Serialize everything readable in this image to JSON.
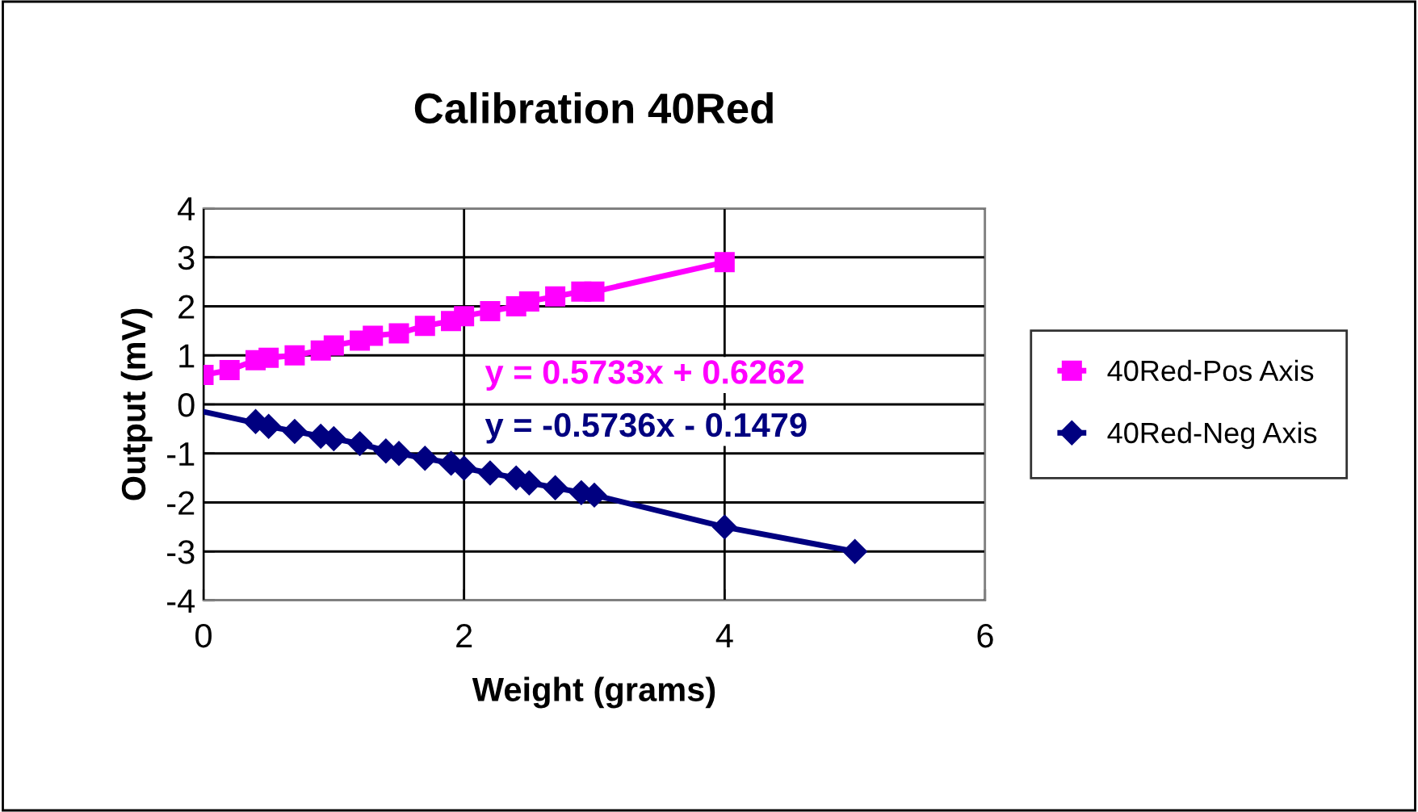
{
  "chart_data": {
    "type": "line",
    "title": "Calibration 40Red",
    "xlabel": "Weight (grams)",
    "ylabel": "Output (mV)",
    "xlim": [
      0,
      6
    ],
    "xticks": [
      0,
      2,
      4,
      6
    ],
    "ylim": [
      -4,
      4
    ],
    "yticks": [
      -4,
      -3,
      -2,
      -1,
      0,
      1,
      2,
      3,
      4
    ],
    "grid": true,
    "legend": "right",
    "series": [
      {
        "name": "40Red-Pos Axis",
        "color": "#ff00ff",
        "marker": "square",
        "x": [
          0,
          0.2,
          0.4,
          0.5,
          0.7,
          0.9,
          1.0,
          1.2,
          1.3,
          1.5,
          1.7,
          1.9,
          2.0,
          2.2,
          2.4,
          2.5,
          2.7,
          2.9,
          3.0,
          4.0
        ],
        "values": [
          0.6,
          0.7,
          0.9,
          0.95,
          1.0,
          1.1,
          1.2,
          1.3,
          1.4,
          1.45,
          1.6,
          1.7,
          1.8,
          1.9,
          2.0,
          2.1,
          2.2,
          2.3,
          2.3,
          2.9
        ]
      },
      {
        "name": "40Red-Neg Axis",
        "color": "#000080",
        "marker": "diamond",
        "x": [
          0.4,
          0.5,
          0.7,
          0.9,
          1.0,
          1.2,
          1.4,
          1.5,
          1.7,
          1.9,
          2.0,
          2.2,
          2.4,
          2.5,
          2.7,
          2.9,
          3.0,
          4.0,
          5.0
        ],
        "values": [
          -0.35,
          -0.45,
          -0.55,
          -0.65,
          -0.7,
          -0.8,
          -0.95,
          -1.0,
          -1.1,
          -1.2,
          -1.3,
          -1.4,
          -1.5,
          -1.6,
          -1.7,
          -1.8,
          -1.85,
          -2.5,
          -3.0
        ]
      },
      {
        "color": "#000080",
        "type": "line",
        "marker": "none",
        "x": [
          0,
          0.4
        ],
        "values": [
          -0.15,
          -0.38
        ]
      }
    ],
    "annotations": [
      "y = 0.5733x + 0.6262",
      "y = -0.5736x - 0.1479"
    ]
  }
}
